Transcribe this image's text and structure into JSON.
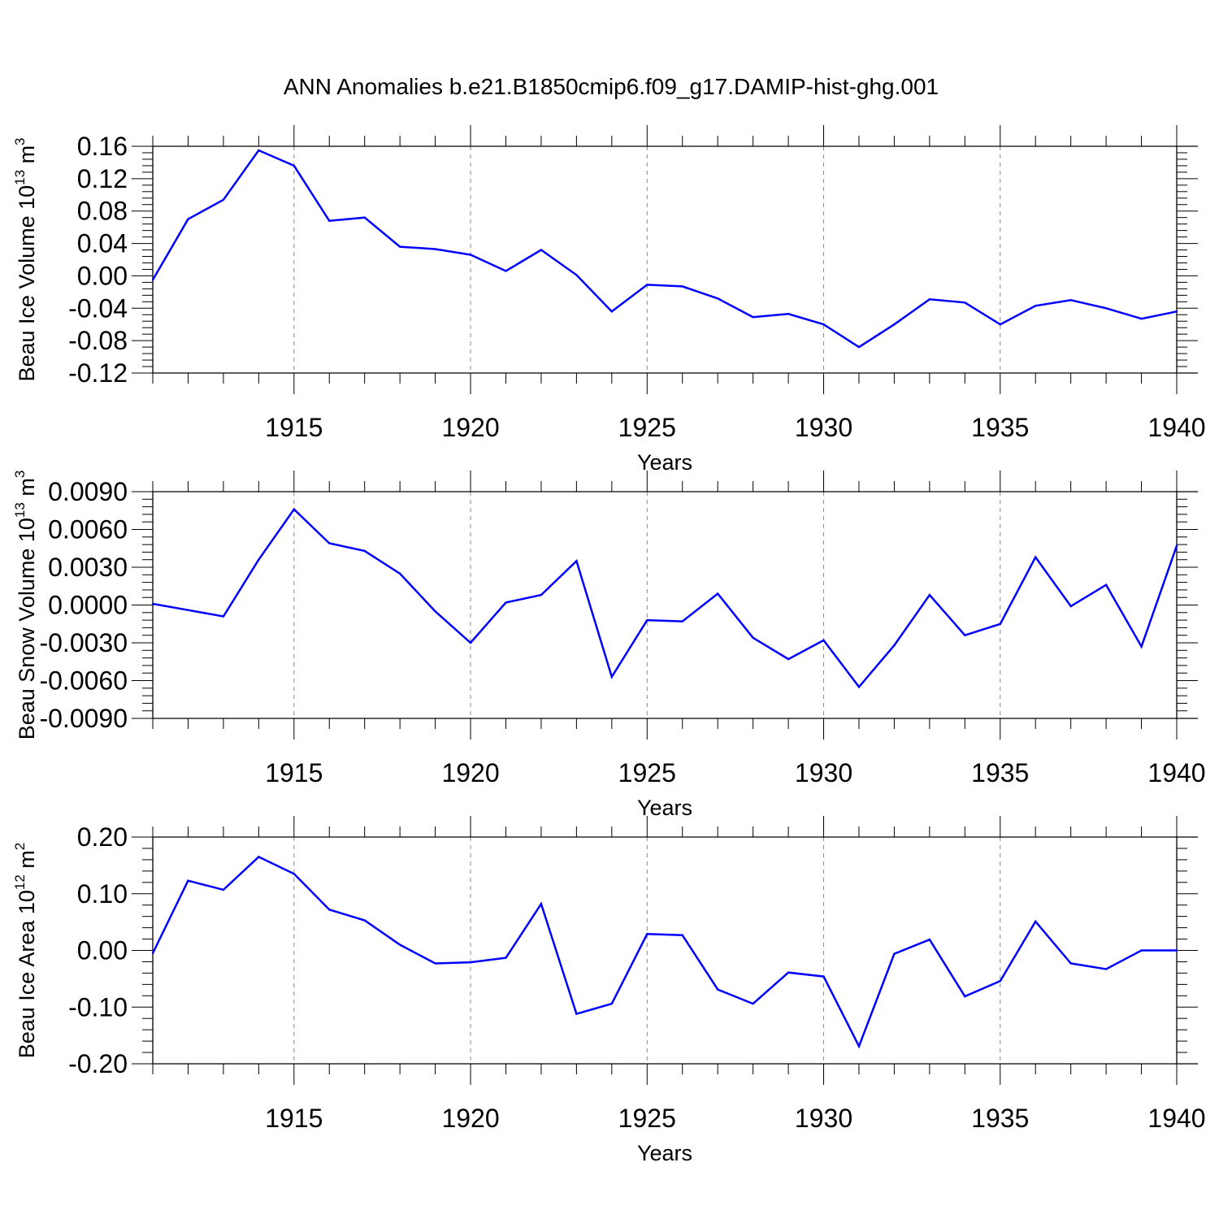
{
  "title": "ANN Anomalies b.e21.B1850cmip6.f09_g17.DAMIP-hist-ghg.001",
  "colors": {
    "series": "#0000ff",
    "axis": "#000000",
    "grid": "#888888"
  },
  "chart_data": [
    {
      "type": "line",
      "ylabel": {
        "base": "Beau Ice Volume 10",
        "exp": "13",
        "unit": " m",
        "unit_exp": "3"
      },
      "xlabel": "Years",
      "xlim": [
        1911,
        1940
      ],
      "ylim": [
        -0.12,
        0.16
      ],
      "yticks": [
        -0.12,
        -0.08,
        -0.04,
        0.0,
        0.04,
        0.08,
        0.12,
        0.16
      ],
      "ytick_labels": [
        "-0.12",
        "-0.08",
        "-0.04",
        "0.00",
        "0.04",
        "0.08",
        "0.12",
        "0.16"
      ],
      "xticks": [
        1915,
        1920,
        1925,
        1930,
        1935,
        1940
      ],
      "xtick_labels": [
        "1915",
        "1920",
        "1925",
        "1930",
        "1935",
        "1940"
      ],
      "grid_x": [
        1915,
        1920,
        1925,
        1930,
        1935
      ],
      "series": [
        {
          "name": "Beau Ice Volume",
          "x": [
            1911,
            1912,
            1913,
            1914,
            1915,
            1916,
            1917,
            1918,
            1919,
            1920,
            1921,
            1922,
            1923,
            1924,
            1925,
            1926,
            1927,
            1928,
            1929,
            1930,
            1931,
            1932,
            1933,
            1934,
            1935,
            1936,
            1937,
            1938,
            1939,
            1940
          ],
          "values": [
            -0.005,
            0.07,
            0.094,
            0.155,
            0.136,
            0.068,
            0.072,
            0.036,
            0.033,
            0.026,
            0.006,
            0.032,
            0.001,
            -0.044,
            -0.011,
            -0.013,
            -0.028,
            -0.051,
            -0.047,
            -0.06,
            -0.088,
            -0.06,
            -0.029,
            -0.033,
            -0.06,
            -0.037,
            -0.03,
            -0.04,
            -0.053,
            -0.044
          ]
        }
      ]
    },
    {
      "type": "line",
      "ylabel": {
        "base": "Beau Snow Volume 10",
        "exp": "13",
        "unit": " m",
        "unit_exp": "3"
      },
      "xlabel": "Years",
      "xlim": [
        1911,
        1940
      ],
      "ylim": [
        -0.009,
        0.009
      ],
      "yticks": [
        -0.009,
        -0.006,
        -0.003,
        0.0,
        0.003,
        0.006,
        0.009
      ],
      "ytick_labels": [
        "-0.0090",
        "-0.0060",
        "-0.0030",
        "0.0000",
        "0.0030",
        "0.0060",
        "0.0090"
      ],
      "xticks": [
        1915,
        1920,
        1925,
        1930,
        1935,
        1940
      ],
      "xtick_labels": [
        "1915",
        "1920",
        "1925",
        "1930",
        "1935",
        "1940"
      ],
      "grid_x": [
        1915,
        1920,
        1925,
        1930,
        1935
      ],
      "series": [
        {
          "name": "Beau Snow Volume",
          "x": [
            1911,
            1912,
            1913,
            1914,
            1915,
            1916,
            1917,
            1918,
            1919,
            1920,
            1921,
            1922,
            1923,
            1924,
            1925,
            1926,
            1927,
            1928,
            1929,
            1930,
            1931,
            1932,
            1933,
            1934,
            1935,
            1936,
            1937,
            1938,
            1939,
            1940
          ],
          "values": [
            0.0001,
            -0.0004,
            -0.0009,
            0.0036,
            0.0076,
            0.0049,
            0.0043,
            0.0025,
            -0.0005,
            -0.003,
            0.0002,
            0.0008,
            0.0035,
            -0.0057,
            -0.0012,
            -0.0013,
            0.0009,
            -0.0026,
            -0.0043,
            -0.0028,
            -0.0065,
            -0.0032,
            0.0008,
            -0.0024,
            -0.0015,
            0.0038,
            -0.0001,
            0.0016,
            -0.0033,
            0.0047
          ]
        }
      ]
    },
    {
      "type": "line",
      "ylabel": {
        "base": "Beau Ice Area 10",
        "exp": "12",
        "unit": " m",
        "unit_exp": "2"
      },
      "xlabel": "Years",
      "xlim": [
        1911,
        1940
      ],
      "ylim": [
        -0.2,
        0.2
      ],
      "yticks": [
        -0.2,
        -0.1,
        0.0,
        0.1,
        0.2
      ],
      "ytick_labels": [
        "-0.20",
        "-0.10",
        "0.00",
        "0.10",
        "0.20"
      ],
      "xticks": [
        1915,
        1920,
        1925,
        1930,
        1935,
        1940
      ],
      "xtick_labels": [
        "1915",
        "1920",
        "1925",
        "1930",
        "1935",
        "1940"
      ],
      "grid_x": [
        1915,
        1920,
        1925,
        1930,
        1935
      ],
      "series": [
        {
          "name": "Beau Ice Area",
          "x": [
            1911,
            1912,
            1913,
            1914,
            1915,
            1916,
            1917,
            1918,
            1919,
            1920,
            1921,
            1922,
            1923,
            1924,
            1925,
            1926,
            1927,
            1928,
            1929,
            1930,
            1931,
            1932,
            1933,
            1934,
            1935,
            1936,
            1937,
            1938,
            1939,
            1940
          ],
          "values": [
            -0.005,
            0.123,
            0.107,
            0.165,
            0.135,
            0.072,
            0.053,
            0.01,
            -0.023,
            -0.021,
            -0.013,
            0.082,
            -0.112,
            -0.094,
            0.029,
            0.027,
            -0.069,
            -0.094,
            -0.039,
            -0.046,
            -0.169,
            -0.006,
            0.019,
            -0.081,
            -0.054,
            0.051,
            -0.023,
            -0.033,
            0.0,
            0.0
          ]
        }
      ]
    }
  ]
}
